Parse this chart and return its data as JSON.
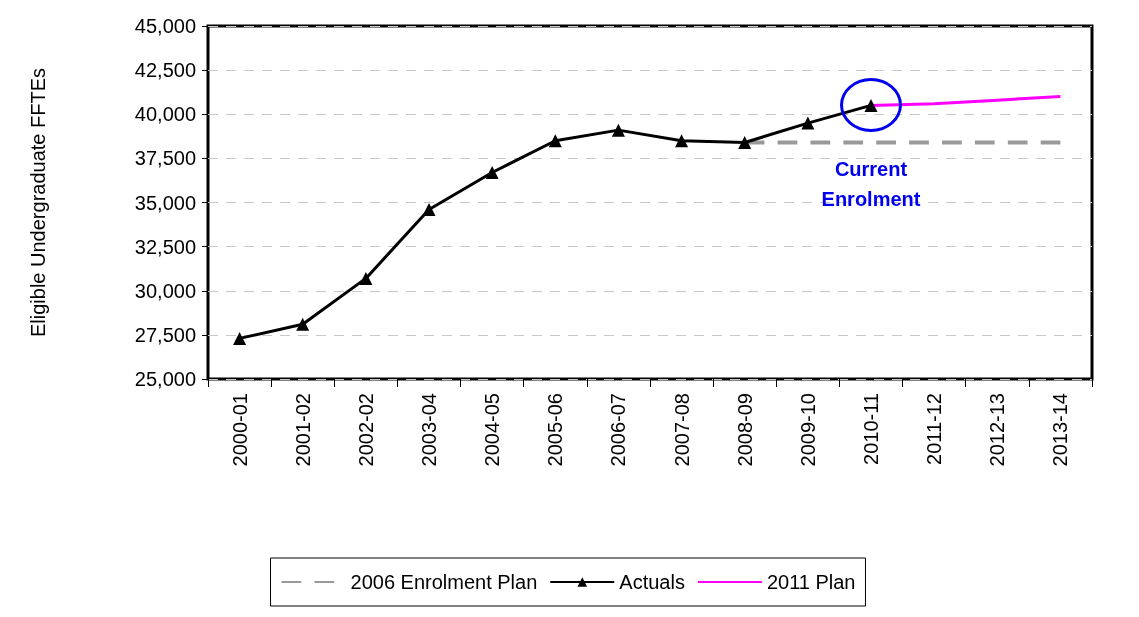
{
  "chart_data": {
    "type": "line",
    "ylabel": "Eligible Undergraduate FFTEs",
    "categories": [
      "2000-01",
      "2001-02",
      "2002-02",
      "2003-04",
      "2004-05",
      "2005-06",
      "2006-07",
      "2007-08",
      "2008-09",
      "2009-10",
      "2010-11",
      "2011-12",
      "2012-13",
      "2013-14"
    ],
    "series": [
      {
        "name": "2006 Enrolment Plan",
        "color": "#999999",
        "line_style": "dashed",
        "marker": "none",
        "values": [
          null,
          null,
          null,
          null,
          null,
          null,
          null,
          null,
          38400,
          38400,
          38400,
          38400,
          38400,
          38400
        ]
      },
      {
        "name": "Actuals",
        "color": "#000000",
        "line_style": "solid",
        "marker": "triangle",
        "values": [
          27300,
          28100,
          30700,
          34600,
          36700,
          38500,
          39100,
          38500,
          38400,
          39500,
          40500,
          null,
          null,
          null
        ]
      },
      {
        "name": "2011 Plan",
        "color": "#ff00ff",
        "line_style": "solid",
        "marker": "none",
        "values": [
          null,
          null,
          null,
          null,
          null,
          null,
          null,
          null,
          null,
          null,
          40500,
          40600,
          40800,
          41000
        ]
      }
    ],
    "ylim": [
      25000,
      45000
    ],
    "yticks": [
      {
        "value": 25000,
        "label": "25,000"
      },
      {
        "value": 27500,
        "label": "27,500"
      },
      {
        "value": 30000,
        "label": "30,000"
      },
      {
        "value": 32500,
        "label": "32,500"
      },
      {
        "value": 35000,
        "label": "35,000"
      },
      {
        "value": 37500,
        "label": "37,500"
      },
      {
        "value": 40000,
        "label": "40,000"
      },
      {
        "value": 42500,
        "label": "42,500"
      },
      {
        "value": 45000,
        "label": "45,000"
      }
    ],
    "grid": "y",
    "legend": "bottom",
    "annotations": [
      {
        "text": "Current Enrolment",
        "x": "2010-11",
        "y": 40500
      }
    ]
  }
}
